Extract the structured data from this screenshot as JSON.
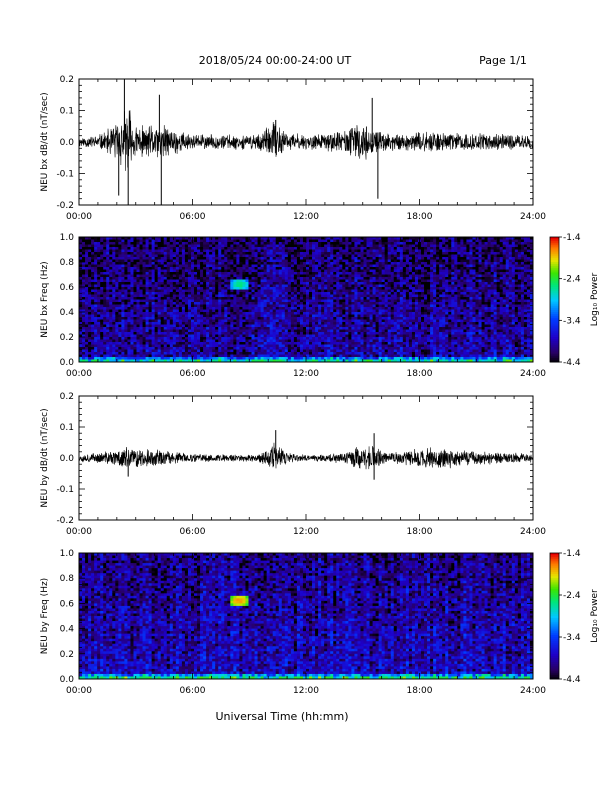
{
  "header": {
    "date_range": "2018/05/24  00:00-24:00 UT",
    "page": "Page 1/1"
  },
  "chart_data": [
    {
      "type": "line",
      "panel": "bx_waveform",
      "ylabel": "NEU bx dB/dt (nT/sec)",
      "ylim": [
        -0.2,
        0.2
      ],
      "yticks": [
        "0.2",
        "0.1",
        "0.0",
        "-0.1",
        "-0.2"
      ],
      "xlim_hours": [
        0,
        24
      ],
      "xticks": [
        "00:00",
        "06:00",
        "12:00",
        "18:00",
        "24:00"
      ],
      "envelope_hours": [
        0,
        1,
        1.5,
        2,
        2.3,
        2.6,
        2.9,
        3.5,
        4,
        4.5,
        5,
        6,
        7,
        8,
        9,
        9.5,
        10,
        10.3,
        10.6,
        11,
        12,
        13,
        14,
        14.5,
        15,
        15.5,
        16,
        17,
        18,
        19,
        20,
        21,
        22,
        23,
        24
      ],
      "envelope_amplitude": [
        0.015,
        0.02,
        0.035,
        0.06,
        0.08,
        0.12,
        0.05,
        0.045,
        0.05,
        0.05,
        0.04,
        0.022,
        0.022,
        0.022,
        0.02,
        0.03,
        0.04,
        0.065,
        0.045,
        0.028,
        0.022,
        0.025,
        0.035,
        0.05,
        0.055,
        0.035,
        0.028,
        0.025,
        0.028,
        0.03,
        0.028,
        0.025,
        0.025,
        0.022,
        0.02
      ],
      "spikes": [
        {
          "hour": 2.4,
          "value": 0.2
        },
        {
          "hour": 2.6,
          "value": -0.2
        },
        {
          "hour": 2.1,
          "value": -0.17
        },
        {
          "hour": 4.25,
          "value": 0.15
        },
        {
          "hour": 4.35,
          "value": -0.2
        },
        {
          "hour": 15.5,
          "value": 0.14
        },
        {
          "hour": 15.8,
          "value": -0.18
        },
        {
          "hour": 10.4,
          "value": 0.07
        }
      ]
    },
    {
      "type": "heatmap",
      "panel": "bx_spectrogram",
      "ylabel": "NEU bx Freq (Hz)",
      "ylim": [
        0,
        1
      ],
      "yticks": [
        "1.0",
        "0.8",
        "0.6",
        "0.4",
        "0.2",
        "0.0"
      ],
      "xlim_hours": [
        0,
        24
      ],
      "xticks": [
        "00:00",
        "06:00",
        "12:00",
        "18:00",
        "24:00"
      ],
      "colorbar_label": "Log₁₀ Power",
      "colorbar_ticks": [
        "-1.4",
        "-2.4",
        "-3.4",
        "-4.4"
      ],
      "colorbar_range": [
        -4.4,
        -1.4
      ],
      "background_power": -3.9,
      "features": [
        {
          "hour_center": 8.5,
          "freq_center": 0.62,
          "power": -2.5
        }
      ]
    },
    {
      "type": "line",
      "panel": "by_waveform",
      "ylabel": "NEU by dB/dt (nT/sec)",
      "ylim": [
        -0.2,
        0.2
      ],
      "yticks": [
        "0.2",
        "0.1",
        "0.0",
        "-0.1",
        "-0.2"
      ],
      "xlim_hours": [
        0,
        24
      ],
      "xticks": [
        "00:00",
        "06:00",
        "12:00",
        "18:00",
        "24:00"
      ],
      "envelope_hours": [
        0,
        1,
        2,
        2.5,
        3,
        4,
        5,
        6,
        7,
        8,
        9,
        9.5,
        10,
        10.3,
        10.6,
        11,
        12,
        13,
        14,
        14.5,
        15,
        15.5,
        16,
        17,
        18,
        19,
        20,
        21,
        22,
        23,
        24
      ],
      "envelope_amplitude": [
        0.012,
        0.015,
        0.025,
        0.035,
        0.03,
        0.025,
        0.02,
        0.012,
        0.012,
        0.012,
        0.01,
        0.015,
        0.03,
        0.055,
        0.035,
        0.015,
        0.01,
        0.012,
        0.02,
        0.035,
        0.03,
        0.04,
        0.02,
        0.018,
        0.03,
        0.03,
        0.028,
        0.02,
        0.018,
        0.015,
        0.012
      ],
      "spikes": [
        {
          "hour": 10.4,
          "value": 0.09
        },
        {
          "hour": 15.6,
          "value": 0.08
        },
        {
          "hour": 15.6,
          "value": -0.07
        },
        {
          "hour": 2.6,
          "value": -0.06
        }
      ]
    },
    {
      "type": "heatmap",
      "panel": "by_spectrogram",
      "ylabel": "NEU by Freq (Hz)",
      "ylim": [
        0,
        1
      ],
      "yticks": [
        "1.0",
        "0.8",
        "0.6",
        "0.4",
        "0.2",
        "0.0"
      ],
      "xlim_hours": [
        0,
        24
      ],
      "xticks": [
        "00:00",
        "06:00",
        "12:00",
        "18:00",
        "24:00"
      ],
      "colorbar_label": "Log₁₀ Power",
      "colorbar_ticks": [
        "-1.4",
        "-2.4",
        "-3.4",
        "-4.4"
      ],
      "colorbar_range": [
        -4.4,
        -1.4
      ],
      "background_power": -3.8,
      "features": [
        {
          "hour_center": 8.5,
          "freq_center": 0.62,
          "power": -1.7
        }
      ]
    }
  ],
  "xlabel": "Universal Time (hh:mm)"
}
